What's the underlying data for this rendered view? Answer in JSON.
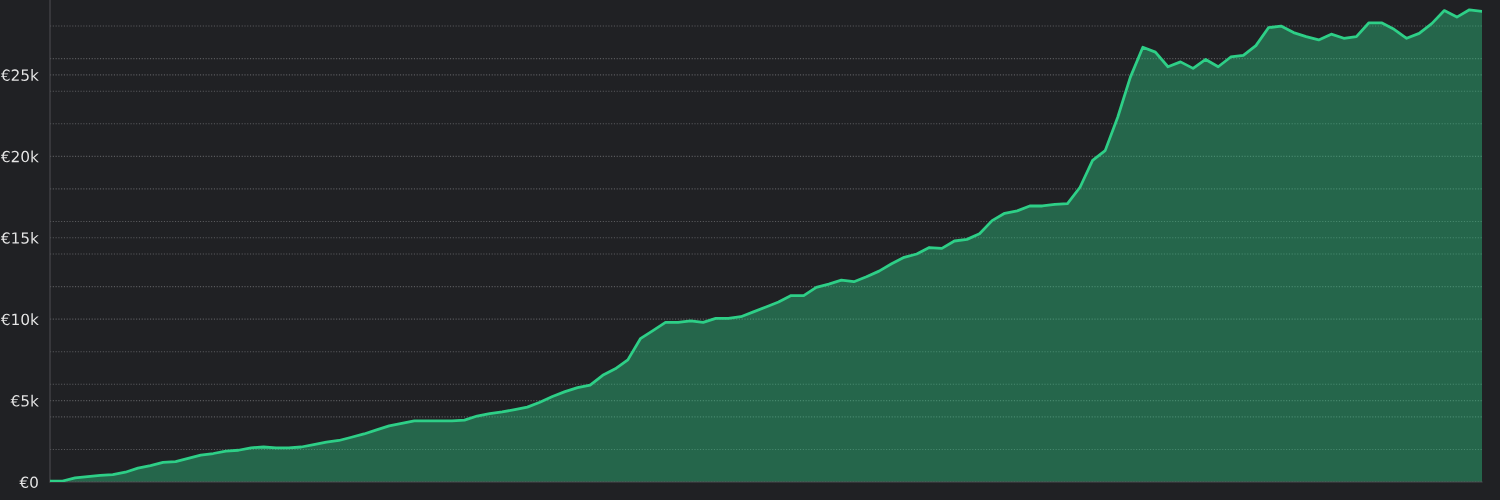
{
  "chart_data": {
    "type": "area",
    "categories": [
      null,
      null,
      null,
      null,
      null,
      null,
      null,
      null,
      null,
      null,
      null,
      null,
      null,
      null,
      null,
      null,
      null,
      null,
      null,
      null,
      null,
      null,
      null,
      null,
      null,
      null,
      null,
      null,
      null,
      null,
      null,
      null,
      null,
      null,
      null,
      null,
      null,
      null,
      null,
      null,
      null,
      null,
      null,
      null,
      null,
      null,
      null,
      null,
      null,
      null,
      null,
      null,
      null,
      null,
      null,
      null,
      null,
      null,
      null,
      null,
      null,
      null,
      null,
      null,
      null,
      null,
      null,
      null,
      null,
      null,
      null,
      null,
      null,
      null,
      null,
      null,
      null,
      null,
      null,
      null,
      null,
      null,
      null,
      null,
      null,
      null,
      null,
      null,
      null,
      null,
      null,
      null,
      null,
      null,
      null,
      null,
      null,
      null,
      null,
      null,
      null,
      null,
      null,
      null,
      null,
      null,
      null,
      null,
      null,
      null,
      null,
      null,
      null,
      null,
      null
    ],
    "series": [
      {
        "color": "#2ecf87",
        "values": [
          60,
          60,
          250,
          330,
          400,
          450,
          600,
          850,
          1000,
          1200,
          1250,
          1450,
          1650,
          1750,
          1900,
          1950,
          2100,
          2150,
          2100,
          2100,
          2150,
          2300,
          2450,
          2550,
          2750,
          2950,
          3200,
          3450,
          3600,
          3750,
          3750,
          3750,
          3750,
          3800,
          4050,
          4200,
          4300,
          4450,
          4600,
          4900,
          5250,
          5550,
          5800,
          5950,
          6550,
          6950,
          7500,
          8800,
          9300,
          9800,
          9800,
          9900,
          9800,
          10050,
          10050,
          10150,
          10450,
          10750,
          11050,
          11450,
          11450,
          11950,
          12150,
          12400,
          12300,
          12600,
          12950,
          13400,
          13800,
          14000,
          14400,
          14350,
          14800,
          14900,
          15250,
          16050,
          16500,
          16650,
          16950,
          16950,
          17050,
          17100,
          18100,
          19750,
          20350,
          22400,
          24850,
          26700,
          26400,
          25500,
          25800,
          25400,
          25950,
          25500,
          26100,
          26200,
          26800,
          27900,
          28000,
          27600,
          27350,
          27150,
          27500,
          27250,
          27350,
          28200,
          28200,
          27800,
          27250,
          27550,
          28150,
          28950,
          28550,
          29000,
          28900
        ]
      }
    ],
    "ylim": [
      0,
      29600
    ],
    "yticks": [
      {
        "value": 0,
        "label": "€0"
      },
      {
        "value": 2000,
        "label": null
      },
      {
        "value": 4000,
        "label": null
      },
      {
        "value": 5000,
        "label": "€5k"
      },
      {
        "value": 6000,
        "label": null
      },
      {
        "value": 8000,
        "label": null
      },
      {
        "value": 10000,
        "label": "€10k"
      },
      {
        "value": 12000,
        "label": null
      },
      {
        "value": 14000,
        "label": null
      },
      {
        "value": 15000,
        "label": "€15k"
      },
      {
        "value": 16000,
        "label": null
      },
      {
        "value": 18000,
        "label": null
      },
      {
        "value": 20000,
        "label": "€20k"
      },
      {
        "value": 22000,
        "label": null
      },
      {
        "value": 24000,
        "label": null
      },
      {
        "value": 25000,
        "label": "€25k"
      },
      {
        "value": 26000,
        "label": null
      },
      {
        "value": 28000,
        "label": null
      }
    ],
    "grid": "y",
    "tick_labels": "y"
  }
}
